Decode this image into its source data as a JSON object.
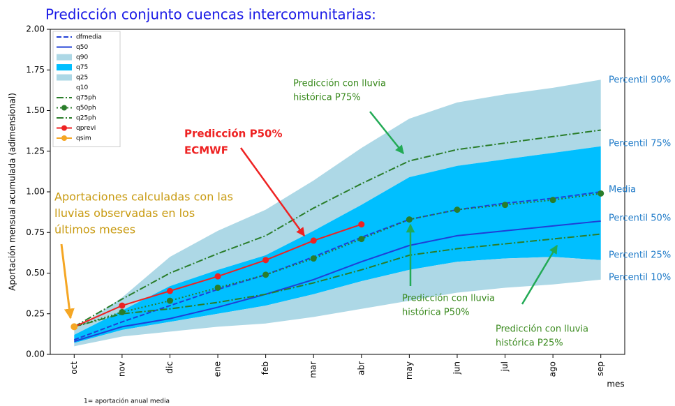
{
  "chart_data": {
    "type": "line",
    "title": "Predicción conjunto cuencas intercomunitarias:",
    "y_label": "Aportación mensual acumulada (adimensional)",
    "x_label": "mes",
    "footnote": "1= aportación anual media",
    "categories": [
      "oct",
      "nov",
      "dic",
      "ene",
      "feb",
      "mar",
      "abr",
      "may",
      "jun",
      "jul",
      "ago",
      "sep"
    ],
    "ylim": [
      0,
      2
    ],
    "yticks": [
      {
        "value": 0,
        "label": "0.00"
      },
      {
        "value": 0.25,
        "label": "0.25"
      },
      {
        "value": 0.5,
        "label": "0.50"
      },
      {
        "value": 0.75,
        "label": "0.75"
      },
      {
        "value": 1,
        "label": "1.00"
      },
      {
        "value": 1.25,
        "label": "1.25"
      },
      {
        "value": 1.5,
        "label": "1.50"
      },
      {
        "value": 1.75,
        "label": "1.75"
      },
      {
        "value": 2,
        "label": "2.00"
      }
    ],
    "legend": "upper left",
    "series": [
      {
        "name": "dfmedia",
        "color": "#1f3fd6",
        "style": "dashed",
        "values": [
          0.09,
          0.2,
          0.3,
          0.4,
          0.49,
          0.6,
          0.72,
          0.83,
          0.89,
          0.93,
          0.96,
          1.0
        ]
      },
      {
        "name": "q50",
        "color": "#1f3fd6",
        "style": "solid",
        "values": [
          0.08,
          0.17,
          0.22,
          0.29,
          0.37,
          0.46,
          0.57,
          0.67,
          0.73,
          0.76,
          0.79,
          0.82
        ]
      },
      {
        "name": "q90",
        "color": "#add8e6",
        "style": "band",
        "values": [
          0.15,
          0.35,
          0.6,
          0.76,
          0.89,
          1.07,
          1.27,
          1.45,
          1.55,
          1.6,
          1.64,
          1.69
        ]
      },
      {
        "name": "q75",
        "color": "#00bfff",
        "style": "band",
        "values": [
          0.12,
          0.27,
          0.42,
          0.52,
          0.61,
          0.76,
          0.92,
          1.09,
          1.16,
          1.2,
          1.24,
          1.28
        ]
      },
      {
        "name": "q25",
        "color": "#add8e6",
        "style": "band",
        "values": [
          0.07,
          0.15,
          0.2,
          0.25,
          0.3,
          0.37,
          0.45,
          0.52,
          0.57,
          0.59,
          0.6,
          0.58
        ]
      },
      {
        "name": "q10",
        "color": "#ffffff",
        "style": "band",
        "values": [
          0.05,
          0.11,
          0.14,
          0.17,
          0.19,
          0.23,
          0.28,
          0.33,
          0.38,
          0.41,
          0.43,
          0.46
        ]
      },
      {
        "name": "q75ph",
        "color": "#2a7d2a",
        "style": "dashdot",
        "values": [
          0.17,
          0.34,
          0.5,
          0.62,
          0.73,
          0.9,
          1.05,
          1.19,
          1.26,
          1.3,
          1.34,
          1.38
        ]
      },
      {
        "name": "q50ph",
        "color": "#2a7d2a",
        "style": "dotted",
        "marker": true,
        "values": [
          0.17,
          0.26,
          0.33,
          0.41,
          0.49,
          0.59,
          0.71,
          0.83,
          0.89,
          0.92,
          0.95,
          0.99
        ]
      },
      {
        "name": "q25ph",
        "color": "#2a7d2a",
        "style": "dashdot",
        "values": [
          0.17,
          0.25,
          0.28,
          0.32,
          0.37,
          0.44,
          0.52,
          0.61,
          0.65,
          0.68,
          0.71,
          0.74
        ]
      },
      {
        "name": "qprevi",
        "color": "#ee2222",
        "style": "solid",
        "marker": true,
        "values": [
          0.17,
          0.3,
          0.39,
          0.48,
          0.58,
          0.7,
          0.8,
          null,
          null,
          null,
          null,
          null
        ]
      },
      {
        "name": "qsim",
        "color": "#f5a623",
        "style": "solid",
        "marker": true,
        "values": [
          0.17,
          null,
          null,
          null,
          null,
          null,
          null,
          null,
          null,
          null,
          null,
          null
        ]
      }
    ],
    "right_labels": {
      "color": "#1e7ac8",
      "texts": [
        "Percentil 90%",
        "Percentil 75%",
        "Media",
        "Percentil 50%",
        "Percentil 25%",
        "Percentil 10%"
      ]
    },
    "annotations": [
      {
        "color": "#3a8a1e",
        "text": [
          "Predicción con lluvia",
          "histórica P75%"
        ]
      },
      {
        "color": "#ee2222",
        "bold": true,
        "text": [
          "Predicción P50%",
          "ECMWF"
        ]
      },
      {
        "color": "#c89a10",
        "text": [
          "Aportaciones calculadas con las",
          "lluvias observadas en los",
          "últimos meses"
        ]
      },
      {
        "color": "#3a8a1e",
        "text": [
          "Predicción con lluvia",
          "histórica P50%"
        ]
      },
      {
        "color": "#3a8a1e",
        "text": [
          "Predicción con lluvia",
          "histórica P25%"
        ]
      }
    ]
  }
}
